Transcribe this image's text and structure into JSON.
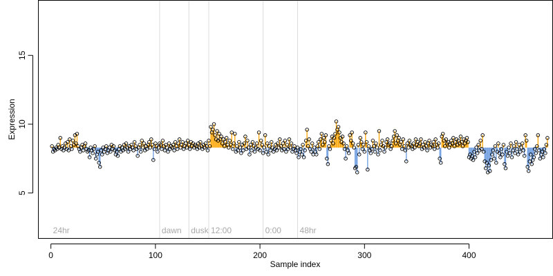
{
  "chart_data": {
    "type": "scatter",
    "title": "",
    "xlabel": "Sample index",
    "ylabel": "Expression",
    "xlim": [
      -12,
      480
    ],
    "ylim": [
      1.7,
      19.0
    ],
    "x_ticks": [
      0,
      100,
      200,
      300,
      400
    ],
    "y_ticks": [
      5,
      10,
      15
    ],
    "baseline": 8.3,
    "colors": {
      "above": "#FFA500",
      "below": "#6A9BE0",
      "point_stroke": "#000000",
      "phase_line": "#dcdcdc",
      "phase_text": "#a8a8a8"
    },
    "phase_markers": [
      {
        "x": 0,
        "label": "24hr"
      },
      {
        "x": 104,
        "label": "dawn"
      },
      {
        "x": 132,
        "label": "dusk"
      },
      {
        "x": 151,
        "label": "12:00"
      },
      {
        "x": 203,
        "label": "0:00"
      },
      {
        "x": 236,
        "label": "48hr"
      }
    ],
    "series": [
      {
        "x_start": 1,
        "x_step": 1,
        "values": [
          8.4,
          8.0,
          8.2,
          8.1,
          8.3,
          8.2,
          8.5,
          8.3,
          9.0,
          8.2,
          8.4,
          8.1,
          8.3,
          8.6,
          8.2,
          8.7,
          8.1,
          8.9,
          8.4,
          8.2,
          8.8,
          8.5,
          9.2,
          8.6,
          9.3,
          8.4,
          8.2,
          8.0,
          8.3,
          8.5,
          8.1,
          8.4,
          8.6,
          8.2,
          8.0,
          8.1,
          7.6,
          8.3,
          8.1,
          7.9,
          8.2,
          8.4,
          7.5,
          7.8,
          8.0,
          7.2,
          6.9,
          8.1,
          7.8,
          8.3,
          8.0,
          8.2,
          8.4,
          7.9,
          8.1,
          8.3,
          8.0,
          8.5,
          8.2,
          8.4,
          8.1,
          7.8,
          8.0,
          7.7,
          8.2,
          8.4,
          8.0,
          8.3,
          8.1,
          8.5,
          8.2,
          8.6,
          8.3,
          8.0,
          8.4,
          8.2,
          8.5,
          8.3,
          8.1,
          8.7,
          8.4,
          8.2,
          7.7,
          8.3,
          8.5,
          8.0,
          8.8,
          8.3,
          8.6,
          8.1,
          8.4,
          8.2,
          8.5,
          8.7,
          8.3,
          8.9,
          8.5,
          7.4,
          8.2,
          8.6,
          8.4,
          8.0,
          8.3,
          8.6,
          8.5,
          8.2,
          8.8,
          8.4,
          8.1,
          8.5,
          8.3,
          8.0,
          8.6,
          8.2,
          8.4,
          8.3,
          8.5,
          8.1,
          8.7,
          8.4,
          8.2,
          8.6,
          8.9,
          8.3,
          8.5,
          8.7,
          8.2,
          8.4,
          8.6,
          8.3,
          8.8,
          8.5,
          8.2,
          8.7,
          8.4,
          8.6,
          8.3,
          8.5,
          8.4,
          8.2,
          8.6,
          8.3,
          8.7,
          8.4,
          8.2,
          8.5,
          8.3,
          8.6,
          8.4,
          8.1,
          8.8,
          8.4,
          9.8,
          9.4,
          9.6,
          10.0,
          9.2,
          8.9,
          9.5,
          8.8,
          9.3,
          8.9,
          9.1,
          8.6,
          8.9,
          8.4,
          8.7,
          9.0,
          8.5,
          8.3,
          8.8,
          8.5,
          9.4,
          8.2,
          8.6,
          9.3,
          8.0,
          8.4,
          8.1,
          8.7,
          8.3,
          7.9,
          8.5,
          8.1,
          8.6,
          9.1,
          8.2,
          8.8,
          8.3,
          7.8,
          8.5,
          8.1,
          8.7,
          8.4,
          8.0,
          8.3,
          8.6,
          8.2,
          9.4,
          8.1,
          8.8,
          8.5,
          7.9,
          8.3,
          9.2,
          8.0,
          8.6,
          7.8,
          8.4,
          8.1,
          8.7,
          8.3,
          8.0,
          8.2,
          8.5,
          8.1,
          8.6,
          8.3,
          8.9,
          8.4,
          8.1,
          8.6,
          8.2,
          8.8,
          8.0,
          8.5,
          8.2,
          8.9,
          8.3,
          8.6,
          8.0,
          8.2,
          8.4,
          8.1,
          7.9,
          8.3,
          7.6,
          8.0,
          8.2,
          7.8,
          8.5,
          7.6,
          8.1,
          8.8,
          9.6,
          8.4,
          8.9,
          8.2,
          8.0,
          8.6,
          7.8,
          8.3,
          8.0,
          7.8,
          8.4,
          8.7,
          8.2,
          8.9,
          9.3,
          8.5,
          9.0,
          8.7,
          9.2,
          7.5,
          7.1,
          8.4,
          8.2,
          8.8,
          9.1,
          8.6,
          9.0,
          9.3,
          10.2,
          9.6,
          9.8,
          9.4,
          9.0,
          8.7,
          9.1,
          8.6,
          8.2,
          7.5,
          8.4,
          8.1,
          7.9,
          9.2,
          8.8,
          9.4,
          8.6,
          8.3,
          6.8,
          6.9,
          6.5,
          8.5,
          7.8,
          9.0,
          8.7,
          8.2,
          8.5,
          8.0,
          9.4,
          8.7,
          6.7,
          8.4,
          8.1,
          7.9,
          8.2,
          8.8,
          8.4,
          8.0,
          8.6,
          8.3,
          7.8,
          9.5,
          8.1,
          8.5,
          8.8,
          8.4,
          8.0,
          8.3,
          8.7,
          8.9,
          8.5,
          8.6,
          8.2,
          8.4,
          8.8,
          9.1,
          9.5,
          8.6,
          9.2,
          8.8,
          9.0,
          8.5,
          8.7,
          8.2,
          8.9,
          8.4,
          8.1,
          7.3,
          8.6,
          8.3,
          8.8,
          8.5,
          8.4,
          8.2,
          8.6,
          8.3,
          8.9,
          8.5,
          8.7,
          8.4,
          8.6,
          8.9,
          8.2,
          8.5,
          8.3,
          8.7,
          8.4,
          8.1,
          8.6,
          8.8,
          8.3,
          8.5,
          8.4,
          8.7,
          8.2,
          8.9,
          8.5,
          8.3,
          8.6,
          7.5,
          7.2,
          9.1,
          9.3,
          8.8,
          8.4,
          8.9,
          8.6,
          8.7,
          8.3,
          8.5,
          8.8,
          8.6,
          9.0,
          8.4,
          8.7,
          8.9,
          8.5,
          8.8,
          8.6,
          9.1,
          8.7,
          8.4,
          8.9,
          8.6,
          8.8,
          9.0,
          8.7,
          7.6,
          7.8,
          7.5,
          7.7,
          7.4,
          8.0,
          7.6,
          8.3,
          7.9,
          8.5,
          8.1,
          8.8,
          8.2,
          9.2,
          8.0,
          7.3,
          6.8,
          7.2,
          6.5,
          7.0,
          6.6,
          7.4,
          7.8,
          8.1,
          7.5,
          8.4,
          7.2,
          8.0,
          8.6,
          7.9,
          7.6,
          8.2,
          7.8,
          8.5,
          7.1,
          6.8,
          8.0,
          7.7,
          8.3,
          7.9,
          8.6,
          7.6,
          8.1,
          8.4,
          7.9,
          8.7,
          8.2,
          7.8,
          8.5,
          8.0,
          8.3,
          8.6,
          8.1,
          7.7,
          9.2,
          8.8,
          6.9,
          6.6,
          7.3,
          7.8,
          7.1,
          7.4,
          7.6,
          8.2,
          7.9,
          8.4,
          9.2,
          8.1,
          7.5,
          7.8,
          8.0,
          7.6,
          8.2,
          7.9,
          8.5,
          9.0
        ]
      }
    ]
  }
}
